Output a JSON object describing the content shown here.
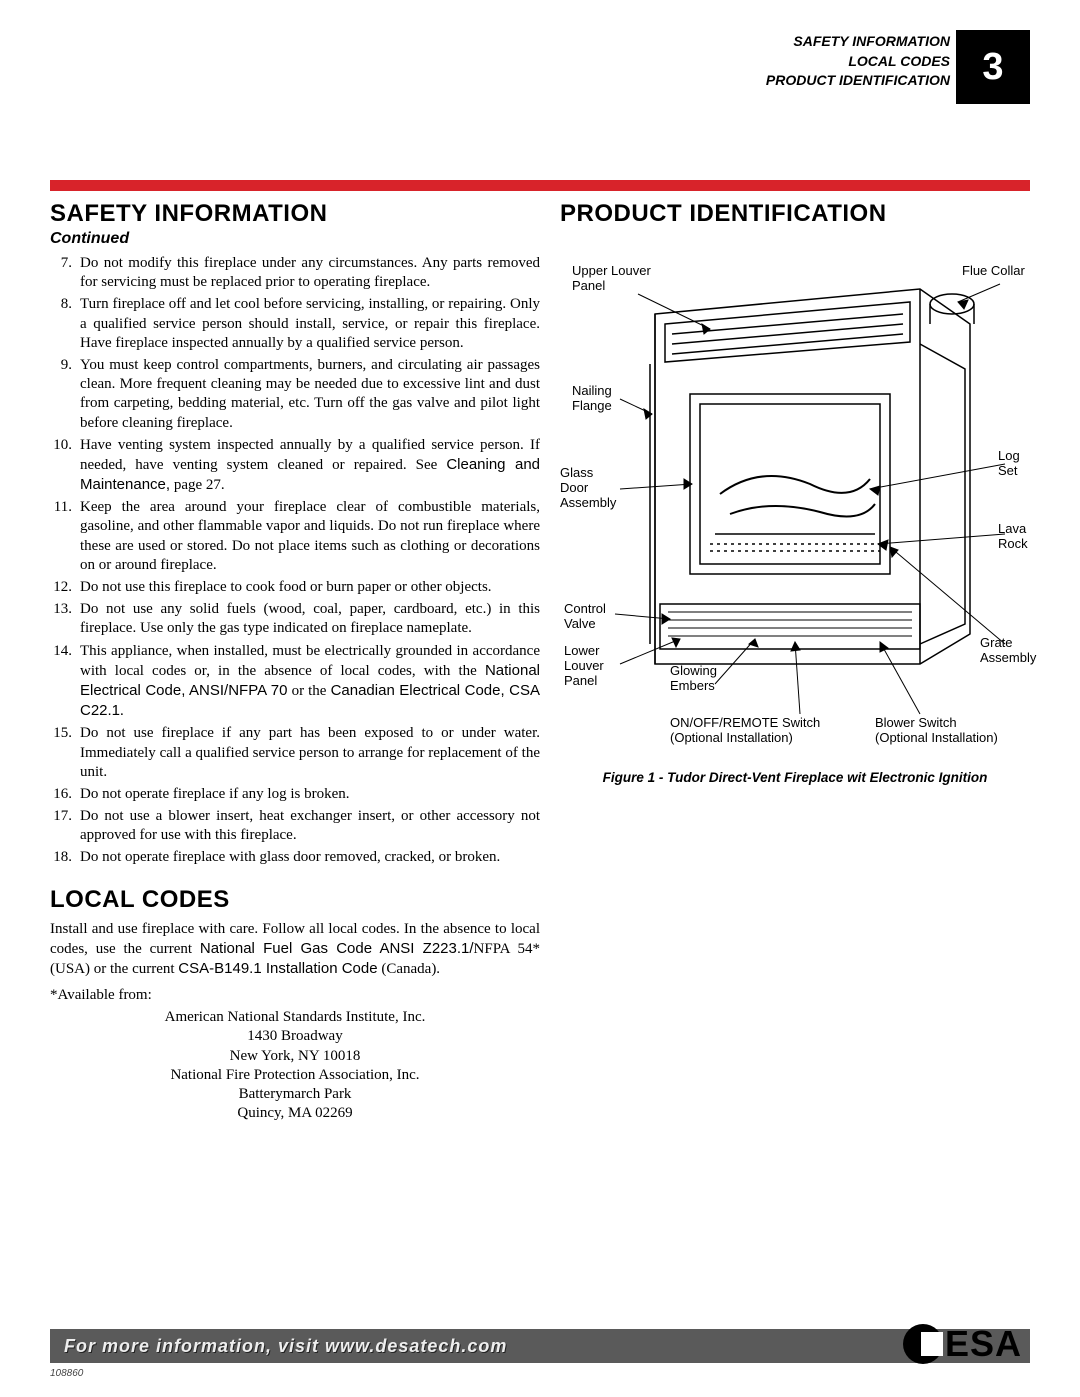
{
  "page_number": "3",
  "header_lines": [
    "SAFETY INFORMATION",
    "LOCAL CODES",
    "PRODUCT IDENTIFICATION"
  ],
  "colors": {
    "accent_red": "#d8232a",
    "footer_bg": "#5a5a5a",
    "black": "#000000",
    "white": "#ffffff"
  },
  "left": {
    "safety_heading": "SAFETY INFORMATION",
    "continued": "Continued",
    "items": [
      {
        "n": "7.",
        "t": "Do not modify this fireplace under any circumstances. Any parts removed for servicing must be replaced prior to operating fireplace."
      },
      {
        "n": "8.",
        "t": "Turn fireplace off and let cool before servicing, installing, or repairing. Only a qualified service person should install, service, or repair this fireplace. Have fireplace inspected annually by a qualified service person."
      },
      {
        "n": "9.",
        "t": "You must keep control compartments, burners, and circulating air passages clean. More frequent cleaning may be needed due to excessive lint and dust from carpeting, bedding material, etc. Turn off the gas valve and pilot light before cleaning fireplace."
      },
      {
        "n": "10.",
        "t": "Have venting system inspected annually by a qualified service person. If needed, have venting system cleaned or repaired. See ",
        "sans": "Cleaning and Maintenance,",
        "tail": " page 27."
      },
      {
        "n": "11.",
        "t": "Keep the area around your fireplace clear of combustible materials, gasoline, and other flammable vapor and liquids. Do not run fireplace where these are used or stored. Do not place items such as clothing or decorations on or around fireplace."
      },
      {
        "n": "12.",
        "t": "Do not use this fireplace to cook food or burn paper or other objects."
      },
      {
        "n": "13.",
        "t": "Do not use any solid fuels (wood, coal, paper, cardboard, etc.) in this fireplace. Use only the gas type indicated on fireplace nameplate."
      },
      {
        "n": "14.",
        "t": "This appliance, when installed, must be electrically grounded in accordance with local codes or, in the absence of local codes, with the ",
        "sans": "National Electrical Code, ANSI/NFPA 70",
        "mid": " or the ",
        "sans2": "Canadian Electrical Code, CSA C22.1",
        "tail": "."
      },
      {
        "n": "15.",
        "t": "Do not use fireplace if any part has been exposed to or under water. Immediately call a qualified service person to arrange for replacement of the unit."
      },
      {
        "n": "16.",
        "t": "Do not operate fireplace if any log is broken."
      },
      {
        "n": "17.",
        "t": "Do not use a blower insert, heat exchanger insert, or other accessory not approved for use with this fireplace."
      },
      {
        "n": "18.",
        "t": "Do not operate fireplace with glass door removed, cracked, or broken."
      }
    ],
    "local_heading": "LOCAL CODES",
    "local_text_pre": "Install and use fireplace with care. Follow all local codes. In the absence to local codes, use the current ",
    "local_sans1": "National Fuel Gas Code ANSI Z223.1/",
    "local_mid1": "NFPA 54* (USA) or the current ",
    "local_sans2": "CSA-B149.1 Installation Code",
    "local_tail": " (Canada).",
    "available": "*Available from:",
    "addr": [
      "American National Standards Institute, Inc.",
      "1430 Broadway",
      "New York, NY 10018",
      "National Fire Protection Association, Inc.",
      "Batterymarch Park",
      "Quincy, MA 02269"
    ]
  },
  "right": {
    "heading": "PRODUCT IDENTIFICATION",
    "labels": {
      "upper_louver": "Upper Louver\nPanel",
      "flue_collar": "Flue Collar",
      "nailing_flange": "Nailing\nFlange",
      "glass_door": "Glass\nDoor\nAssembly",
      "log_set": "Log\nSet",
      "lava_rock": "Lava\nRock",
      "control_valve": "Control\nValve",
      "lower_louver": "Lower\nLouver\nPanel",
      "glowing_embers": "Glowing\nEmbers",
      "grate_assembly": "Grate\nAssembly",
      "on_off": "ON/OFF/REMOTE Switch\n(Optional Installation)",
      "blower_switch": "Blower Switch\n(Optional Installation)"
    },
    "caption": "Figure 1 - Tudor Direct-Vent Fireplace wit Electronic Ignition"
  },
  "footer": {
    "text": "For more information, visit www.desatech.com",
    "logo_text": "ESA",
    "doc_number": "108860"
  }
}
